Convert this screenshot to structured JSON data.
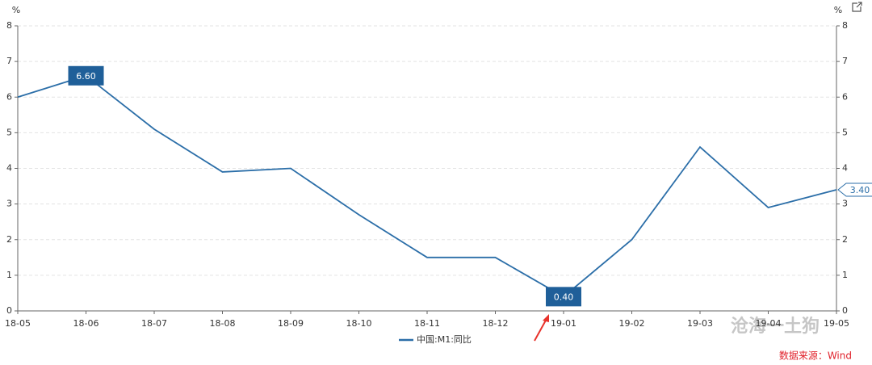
{
  "chart_data": {
    "type": "line",
    "y_unit": "%",
    "y2_unit": "%",
    "categories": [
      "18-05",
      "18-06",
      "18-07",
      "18-08",
      "18-09",
      "18-10",
      "18-11",
      "18-12",
      "19-01",
      "19-02",
      "19-03",
      "19-04",
      "19-05"
    ],
    "series": [
      {
        "name": "中国:M1:同比",
        "color": "#2b6ea8",
        "values": [
          6.0,
          6.6,
          5.1,
          3.9,
          4.0,
          2.7,
          1.5,
          1.5,
          0.4,
          2.0,
          4.6,
          2.9,
          3.4
        ],
        "value_labels": [
          null,
          "6.60",
          null,
          null,
          null,
          null,
          null,
          null,
          "0.40",
          null,
          null,
          null,
          "3.40"
        ]
      }
    ],
    "ylim": [
      0,
      8
    ],
    "yticks": [
      0,
      1,
      2,
      3,
      4,
      5,
      6,
      7,
      8
    ],
    "y2lim": [
      0,
      8
    ],
    "y2ticks": [
      0,
      1,
      2,
      3,
      4,
      5,
      6,
      7,
      8
    ],
    "grid": true,
    "source": "数据来源：Wind",
    "watermark": "沧海一土狗"
  }
}
